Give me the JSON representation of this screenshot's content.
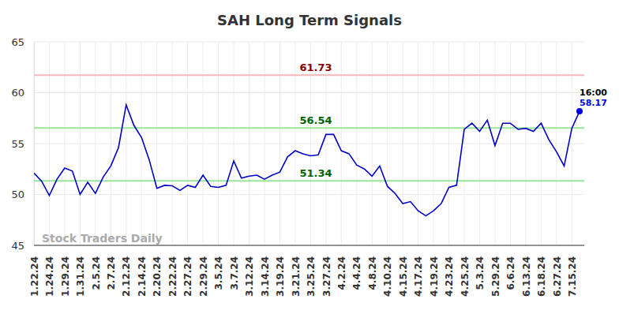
{
  "chart_data": {
    "type": "line",
    "title": "SAH Long Term Signals",
    "watermark": "Stock Traders Daily",
    "categories": [
      "1.22.24",
      null,
      "1.24.24",
      null,
      "1.29.24",
      null,
      "1.31.24",
      null,
      "2.5.24",
      null,
      "2.7.24",
      null,
      "2.12.24",
      null,
      "2.14.24",
      null,
      "2.20.24",
      null,
      "2.22.24",
      null,
      "2.27.24",
      null,
      "2.29.24",
      null,
      "3.5.24",
      null,
      "3.7.24",
      null,
      "3.12.24",
      null,
      "3.14.24",
      null,
      "3.19.24",
      null,
      "3.21.24",
      null,
      "3.25.24",
      null,
      "3.27.24",
      null,
      "4.2.24",
      null,
      "4.4.24",
      null,
      "4.8.24",
      null,
      "4.10.24",
      null,
      "4.15.24",
      null,
      "4.17.24",
      null,
      "4.19.24",
      null,
      "4.23.24",
      null,
      "4.25.24",
      null,
      "5.3.24",
      null,
      "5.29.24",
      null,
      "6.6.24",
      null,
      "6.13.24",
      null,
      "6.18.24",
      null,
      "6.27.24",
      null,
      "7.15.24",
      null
    ],
    "values": [
      52.1,
      51.3,
      49.9,
      51.5,
      52.6,
      52.3,
      50.0,
      51.2,
      50.1,
      51.7,
      52.8,
      54.6,
      58.8,
      56.8,
      55.6,
      53.4,
      50.6,
      50.9,
      50.85,
      50.4,
      50.9,
      50.7,
      51.9,
      50.8,
      50.7,
      50.9,
      53.3,
      51.6,
      51.8,
      51.9,
      51.5,
      51.9,
      52.2,
      53.7,
      54.3,
      54.0,
      53.8,
      53.9,
      55.9,
      55.9,
      54.3,
      54.0,
      52.9,
      52.5,
      51.8,
      52.8,
      50.8,
      50.1,
      49.1,
      49.3,
      48.4,
      47.9,
      48.4,
      49.1,
      50.7,
      50.9,
      56.4,
      57.0,
      56.2,
      57.3,
      54.8,
      57.0,
      57.0,
      56.4,
      56.5,
      56.2,
      57.0,
      55.4,
      54.2,
      52.8,
      56.5,
      58.17
    ],
    "color": "#0000cc",
    "ylim": [
      45,
      65
    ],
    "yticks": [
      45,
      50,
      55,
      60,
      65
    ],
    "grid": true,
    "reference_lines": [
      {
        "value": 61.73,
        "color": "#f5b8b8",
        "label_color": "#8b0000"
      },
      {
        "value": 56.54,
        "color": "#99e699",
        "label_color": "#006400"
      },
      {
        "value": 51.34,
        "color": "#99e699",
        "label_color": "#006400"
      }
    ],
    "last_point": {
      "time": "16:00",
      "color": "#0000ee"
    }
  }
}
